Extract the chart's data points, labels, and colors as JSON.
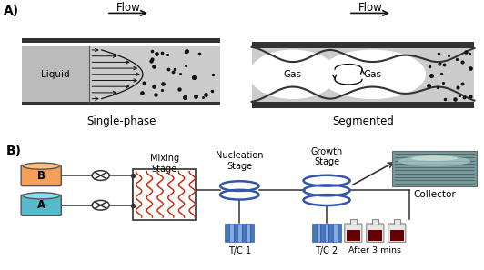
{
  "title_A": "A)",
  "title_B": "B)",
  "label_single": "Single-phase",
  "label_segmented": "Segmented",
  "label_flow": "Flow",
  "label_liquid": "Liquid",
  "label_gas": "Gas",
  "label_mixing": "Mixing\nStage",
  "label_nucleation": "Nucleation\nStage",
  "label_growth": "Growth\nStage",
  "label_collector": "Collector",
  "label_tc1": "T/C 1",
  "label_tc2": "T/C 2",
  "label_after": "After 3 mins",
  "label_A": "A",
  "label_B": "B",
  "bg_color": "#ffffff",
  "tube_gray": "#888888",
  "tube_fill": "#cccccc",
  "dark_border": "#333333",
  "dot_color": "#111111",
  "arrow_color": "#111111",
  "red_line": "#cc2200",
  "blue_coil": "#3355aa",
  "blue_tc_dark": "#4477bb",
  "blue_tc_light": "#88aadd",
  "orange_B": "#f5a05a",
  "orange_B_top": "#f7c080",
  "cyan_A": "#55bbcc",
  "cyan_A_top": "#88ddee",
  "vial_glass": "#dddddd",
  "vial_liquid": "#660000",
  "line_color": "#333333",
  "cross_color": "#333333",
  "white_col": "#ffffff",
  "photo_bg": "#779999",
  "photo_dark": "#334444",
  "photo_light": "#aacccc"
}
